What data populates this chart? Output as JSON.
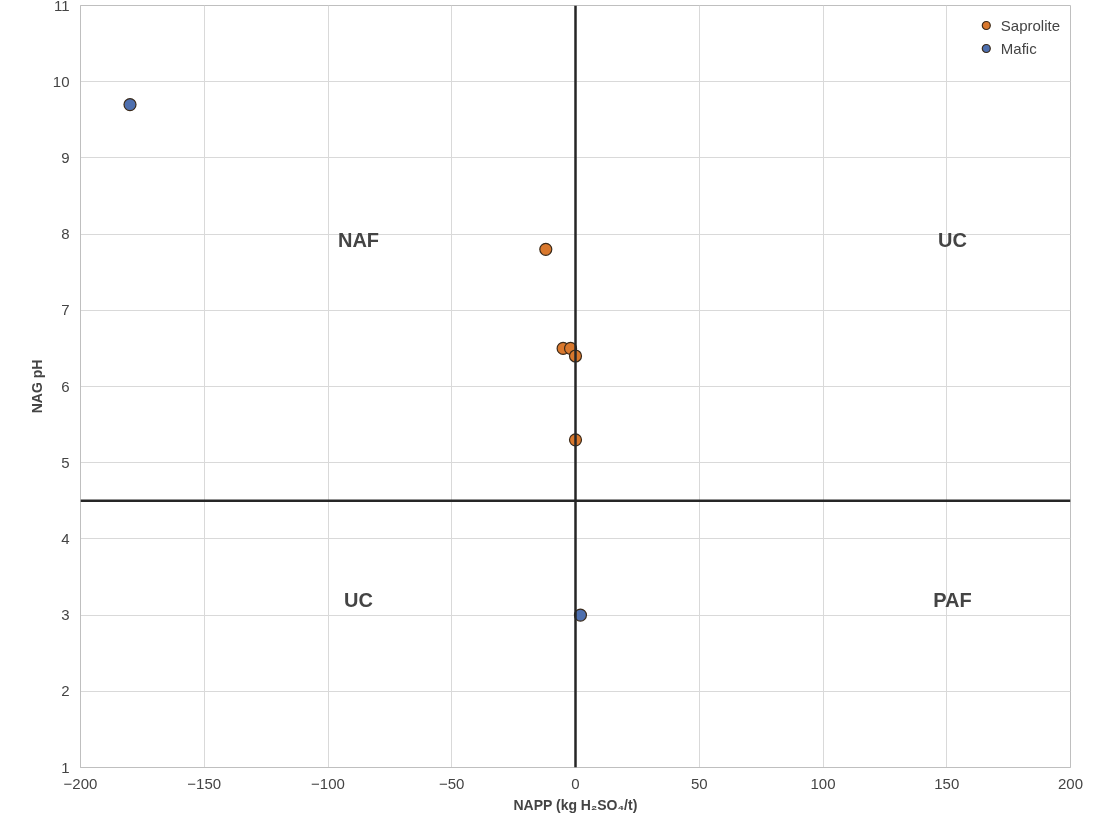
{
  "chart_data": {
    "type": "scatter",
    "xlabel": "NAPP (kg H₂SO₄/t)",
    "ylabel": "NAG pH",
    "xlim": [
      -200,
      200
    ],
    "xticks": [
      -200,
      -150,
      -100,
      -50,
      0,
      50,
      100,
      150,
      200
    ],
    "ylim": [
      1,
      11
    ],
    "yticks": [
      1,
      2,
      3,
      4,
      5,
      6,
      7,
      8,
      9,
      10,
      11
    ],
    "grid": true,
    "legend": "top right",
    "marker": "circle",
    "series": [
      {
        "name": "Saprolite",
        "color": "#d9782d",
        "x": [
          -12,
          -5,
          -2,
          0,
          0
        ],
        "values": [
          7.8,
          6.5,
          6.5,
          6.4,
          5.3
        ]
      },
      {
        "name": "Mafic",
        "color": "#4e6fae",
        "x": [
          -180,
          2
        ],
        "values": [
          9.7,
          3.0
        ]
      }
    ],
    "ref_lines": [
      {
        "axis": "x",
        "value": 0,
        "color": "#262626"
      },
      {
        "axis": "y",
        "value": 4.5,
        "color": "#262626"
      }
    ],
    "annotations": [
      "NAF",
      "UC",
      "UC",
      "PAF"
    ]
  }
}
